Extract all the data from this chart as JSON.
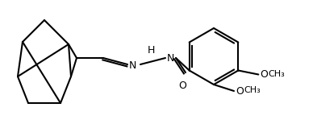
{
  "bg_color": "#ffffff",
  "line_color": "#000000",
  "line_width": 1.5,
  "font_size": 9,
  "fig_width": 3.88,
  "fig_height": 1.54,
  "dpi": 100,
  "labels": {
    "O_top": "O",
    "O_bottom": "O",
    "NH": "H",
    "N_imine": "N",
    "NH_label": "N",
    "carbonyl_O": "O"
  }
}
